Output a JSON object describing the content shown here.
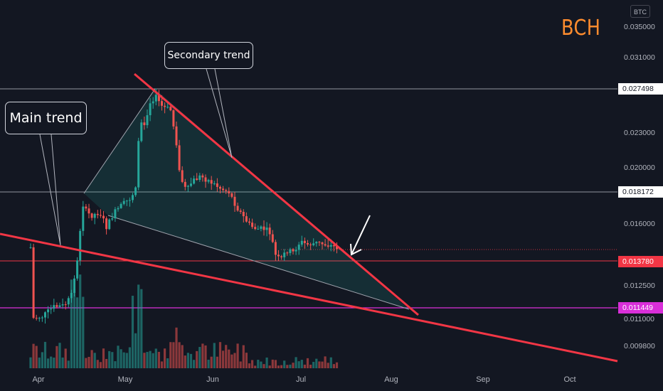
{
  "chart_data": {
    "type": "candlestick",
    "symbol": "BCH",
    "quote_currency": "BTC",
    "x_axis_labels": [
      "Apr",
      "May",
      "Jun",
      "Jul",
      "Aug",
      "Sep",
      "Oct"
    ],
    "y_axis_labels": [
      "0.035000",
      "0.031000",
      "0.023000",
      "0.020000",
      "0.016000",
      "0.012500",
      "0.011000",
      "0.009800"
    ],
    "price_tags": [
      {
        "value": "0.027498",
        "style": "white"
      },
      {
        "value": "0.018172",
        "style": "white"
      },
      {
        "value": "0.013780",
        "style": "red"
      },
      {
        "value": "0.011449",
        "style": "magenta"
      }
    ],
    "annotations": [
      {
        "text": "Main trend"
      },
      {
        "text": "Secondary trend"
      }
    ],
    "colors": {
      "up": "#26a69a",
      "down": "#ef5350",
      "trendline": "#f23645",
      "magenta": "#d92fd9",
      "background": "#131722"
    }
  }
}
